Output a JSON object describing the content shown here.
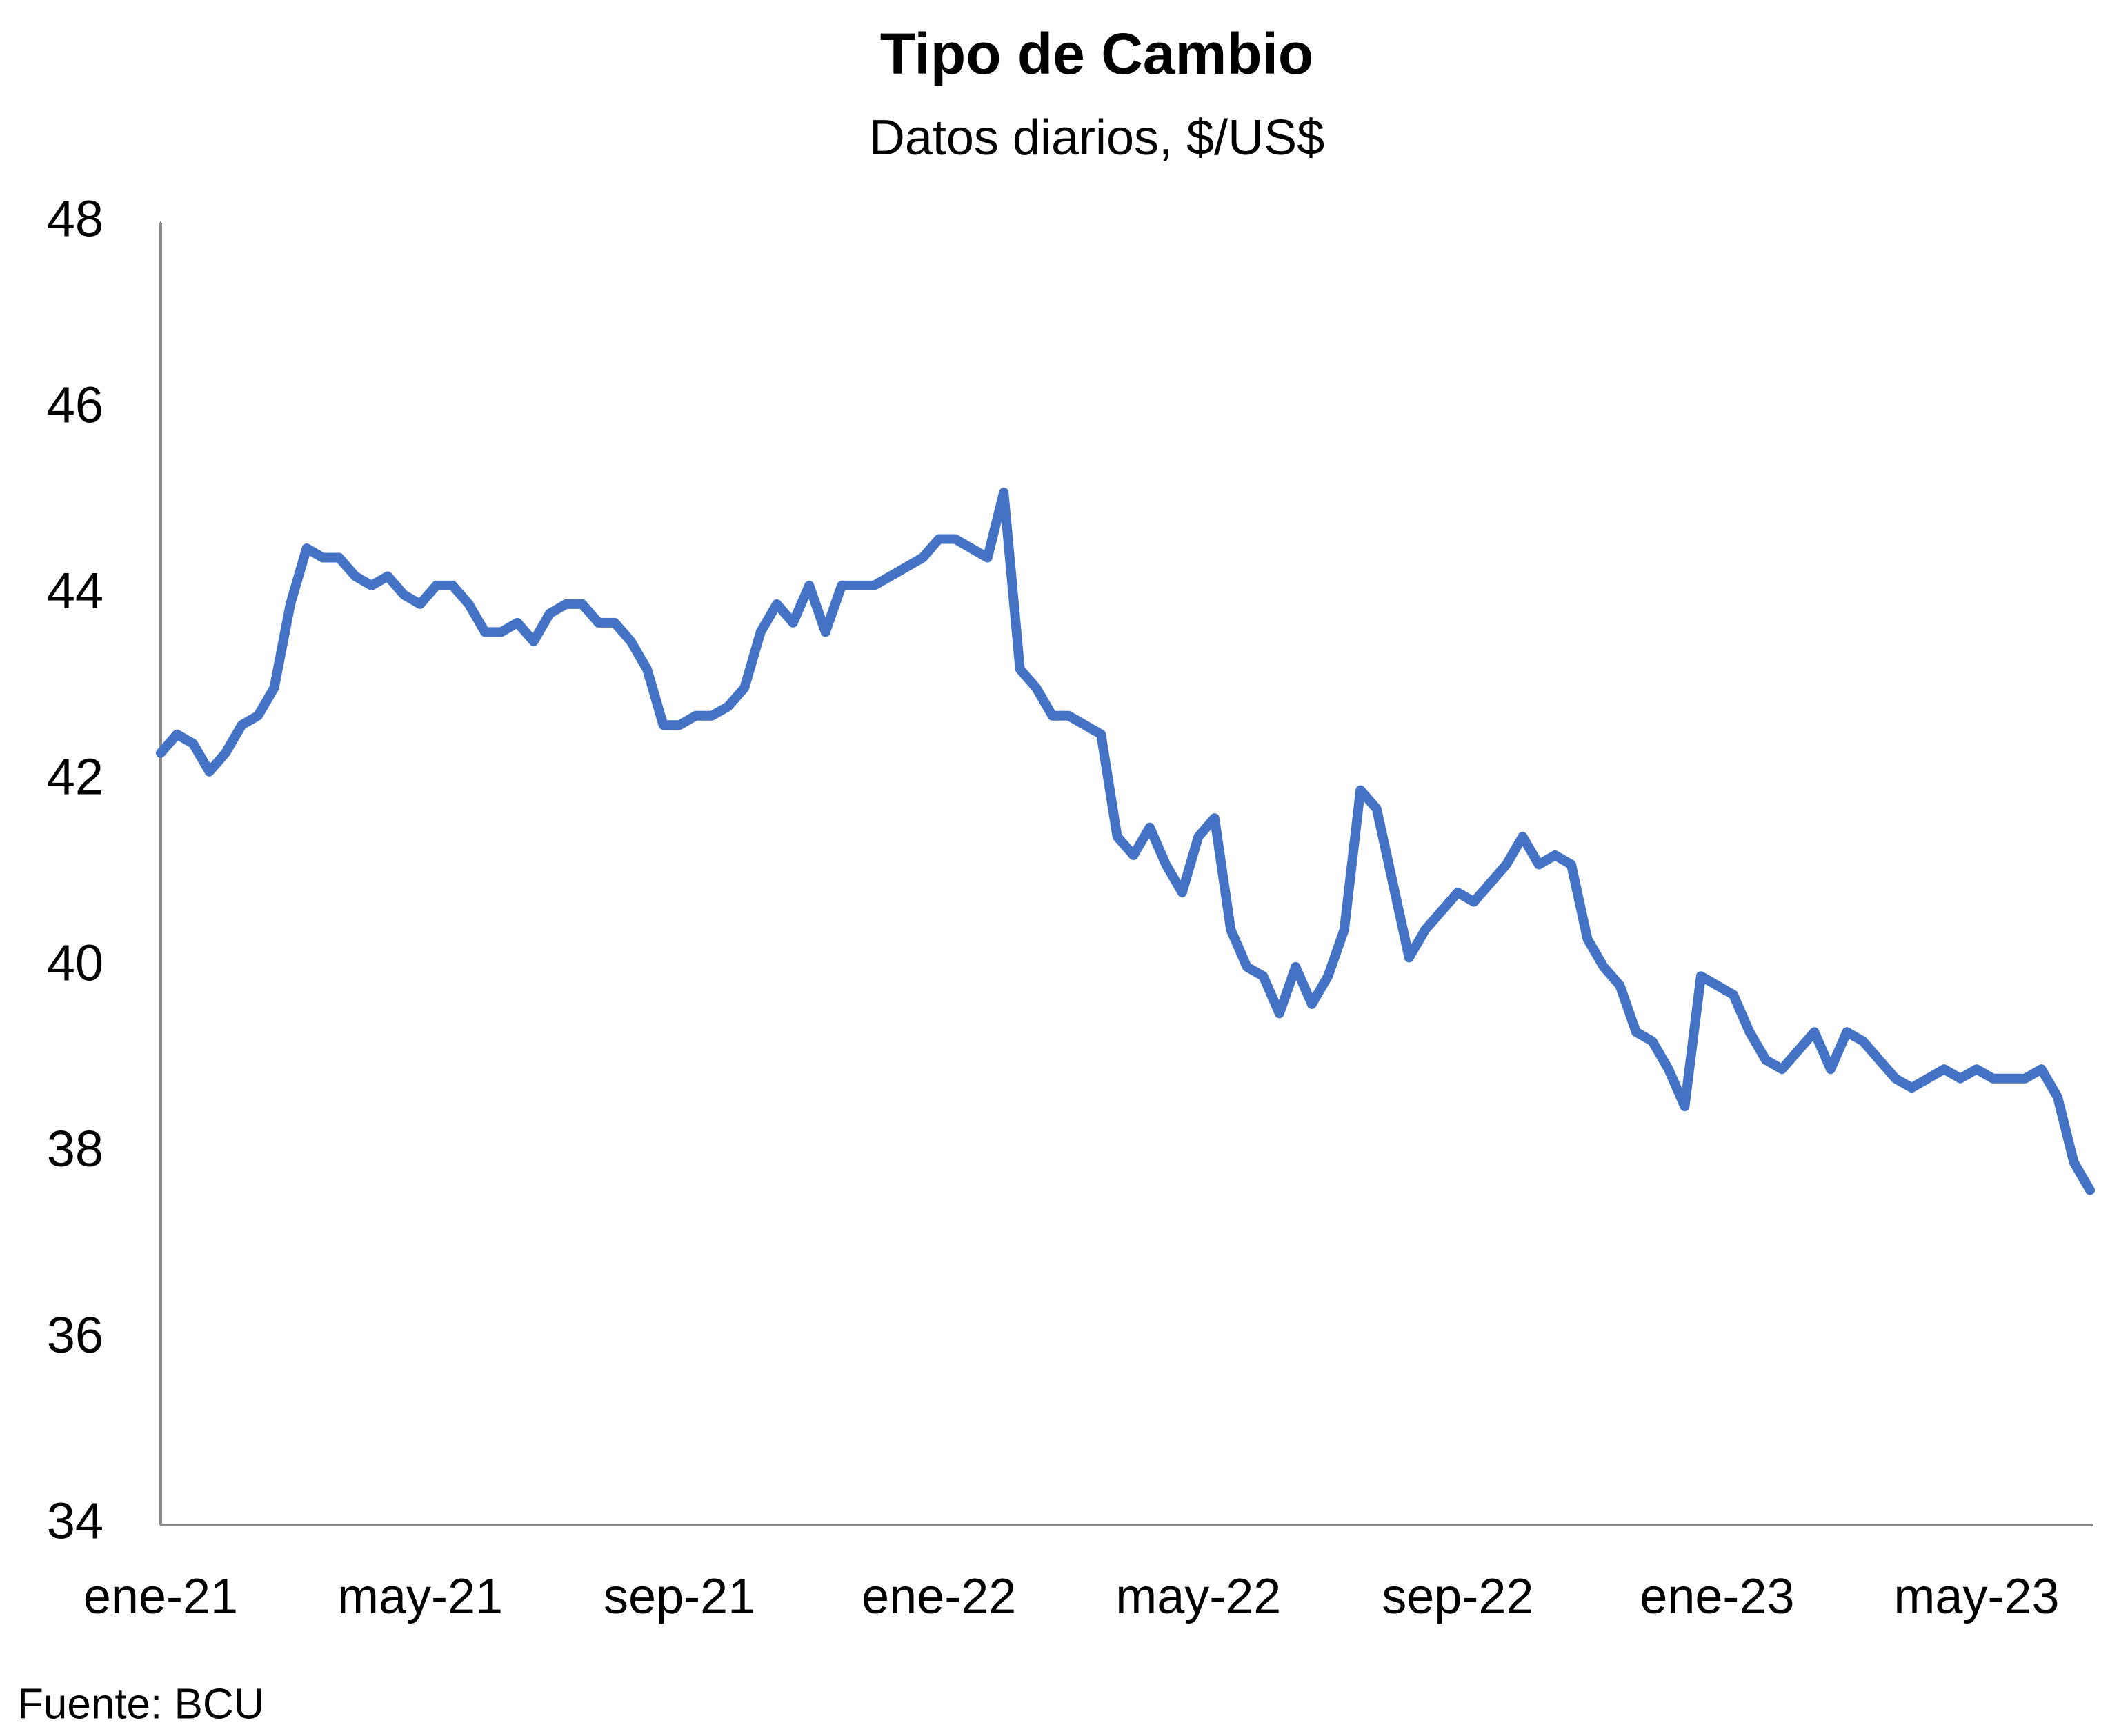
{
  "chart_data": {
    "type": "line",
    "title": "Tipo de Cambio",
    "subtitle": "Datos diarios, $/US$",
    "source": "Fuente: BCU",
    "categories": [
      "ene-21",
      null,
      null,
      null,
      null,
      null,
      null,
      null,
      null,
      null,
      null,
      null,
      null,
      null,
      null,
      null,
      "may-21",
      null,
      null,
      null,
      null,
      null,
      null,
      null,
      null,
      null,
      null,
      null,
      null,
      null,
      null,
      null,
      "sep-21",
      null,
      null,
      null,
      null,
      null,
      null,
      null,
      null,
      null,
      null,
      null,
      null,
      null,
      null,
      null,
      "ene-22",
      null,
      null,
      null,
      null,
      null,
      null,
      null,
      null,
      null,
      null,
      null,
      null,
      null,
      null,
      null,
      "may-22",
      null,
      null,
      null,
      null,
      null,
      null,
      null,
      null,
      null,
      null,
      null,
      null,
      null,
      null,
      null,
      "sep-22",
      null,
      null,
      null,
      null,
      null,
      null,
      null,
      null,
      null,
      null,
      null,
      null,
      null,
      null,
      null,
      "ene-23",
      null,
      null,
      null,
      null,
      null,
      null,
      null,
      null,
      null,
      null,
      null,
      null,
      null,
      null,
      null,
      "may-23",
      null,
      null,
      null,
      null,
      null,
      null,
      null
    ],
    "values": [
      42.3,
      42.5,
      42.4,
      42.1,
      42.3,
      42.6,
      42.7,
      43.0,
      43.9,
      44.5,
      44.4,
      44.4,
      44.2,
      44.1,
      44.2,
      44.0,
      43.9,
      44.1,
      44.1,
      43.9,
      43.6,
      43.6,
      43.7,
      43.5,
      43.8,
      43.9,
      43.9,
      43.7,
      43.7,
      43.5,
      43.2,
      42.6,
      42.6,
      42.7,
      42.7,
      42.8,
      43.0,
      43.6,
      43.9,
      43.7,
      44.1,
      43.6,
      44.1,
      44.1,
      44.1,
      44.2,
      44.3,
      44.4,
      44.6,
      44.6,
      44.5,
      44.4,
      45.1,
      43.2,
      43.0,
      42.7,
      42.7,
      42.6,
      42.5,
      41.4,
      41.2,
      41.5,
      41.1,
      40.8,
      41.4,
      41.6,
      40.4,
      40.0,
      39.9,
      39.5,
      40.0,
      39.6,
      39.9,
      40.4,
      41.9,
      41.7,
      40.9,
      40.1,
      40.4,
      40.6,
      40.8,
      40.7,
      40.9,
      41.1,
      41.4,
      41.1,
      41.2,
      41.1,
      40.3,
      40.0,
      39.8,
      39.3,
      39.2,
      38.9,
      38.5,
      39.9,
      39.8,
      39.7,
      39.3,
      39.0,
      38.9,
      39.1,
      39.3,
      38.9,
      39.3,
      39.2,
      39.0,
      38.8,
      38.7,
      38.8,
      38.9,
      38.8,
      38.9,
      38.8,
      38.8,
      38.8,
      38.9,
      38.6,
      37.9,
      37.6
    ],
    "color": "#4472c4",
    "ylim": [
      34,
      48
    ],
    "yticks": [
      34,
      36,
      38,
      40,
      42,
      44,
      46,
      48
    ],
    "grid": false
  }
}
